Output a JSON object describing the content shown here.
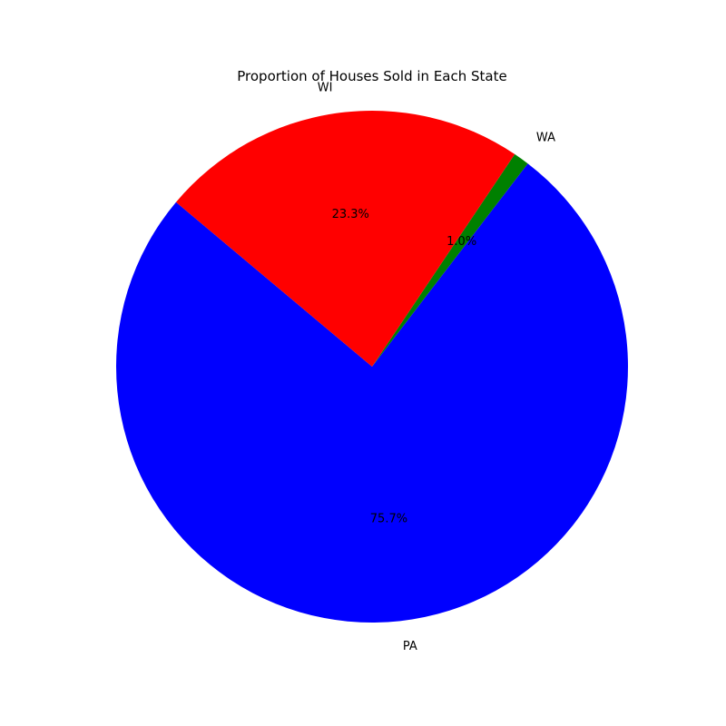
{
  "chart_data": {
    "type": "pie",
    "title": "Proportion of Houses Sold in Each State",
    "slices": [
      {
        "label": "PA",
        "value": 75.7,
        "pct_text": "75.7%",
        "color": "#0000ff"
      },
      {
        "label": "WA",
        "value": 1.0,
        "pct_text": "1.0%",
        "color": "#008000"
      },
      {
        "label": "WI",
        "value": 23.3,
        "pct_text": "23.3%",
        "color": "#ff0000"
      }
    ],
    "start_angle_deg": 140,
    "direction": "counterclockwise",
    "legend": "none"
  }
}
